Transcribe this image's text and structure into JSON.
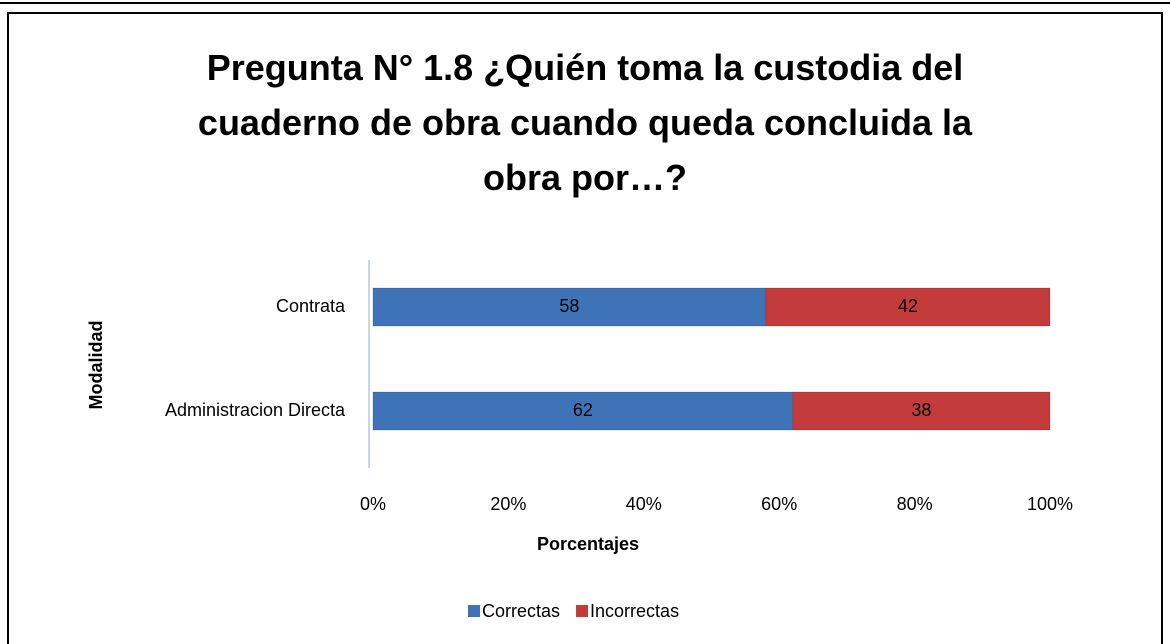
{
  "chart_data": {
    "type": "stacked_barh",
    "title": "Pregunta N° 1.8 ¿Quién toma la custodia del cuaderno de obra cuando queda concluida la obra por…?",
    "categories": [
      "Contrata",
      "Administracion Directa"
    ],
    "series": [
      {
        "name": "Correctas",
        "color": "#3f73b8",
        "values": [
          58,
          62
        ]
      },
      {
        "name": "Incorrectas",
        "color": "#c33b3b",
        "values": [
          42,
          38
        ]
      }
    ],
    "xlim": [
      0,
      100
    ],
    "xticks": [
      {
        "value": 0,
        "label": "0%"
      },
      {
        "value": 20,
        "label": "20%"
      },
      {
        "value": 40,
        "label": "40%"
      },
      {
        "value": 60,
        "label": "60%"
      },
      {
        "value": 80,
        "label": "80%"
      },
      {
        "value": 100,
        "label": "100%"
      }
    ],
    "xlabel": "Porcentajes",
    "ylabel": "Modalidad",
    "legend": "bottom"
  }
}
